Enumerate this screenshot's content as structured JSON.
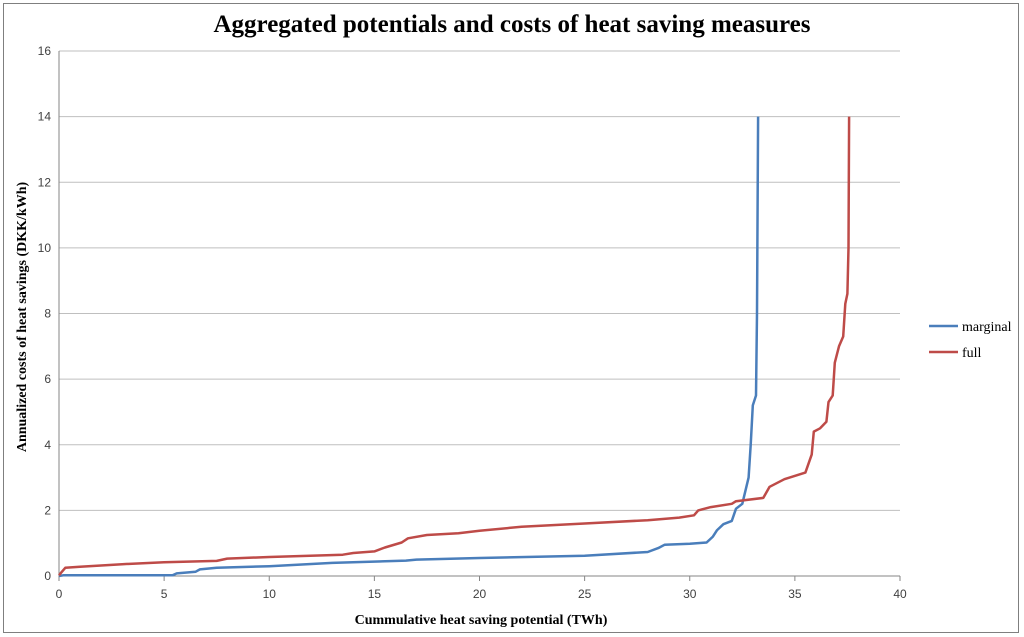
{
  "chart_data": {
    "type": "line",
    "title": "Aggregated potentials and costs of heat saving measures",
    "xlabel": "Cummulative heat saving potential (TWh)",
    "ylabel": "Annualized costs of heat savings (DKK/kWh)",
    "xlim": [
      0,
      40
    ],
    "ylim": [
      0,
      16
    ],
    "xticks": [
      0,
      5,
      10,
      15,
      20,
      25,
      30,
      35,
      40
    ],
    "yticks": [
      0,
      2,
      4,
      6,
      8,
      10,
      12,
      14,
      16
    ],
    "grid": "horizontal",
    "legend_position": "right",
    "series": [
      {
        "name": "marginal",
        "color": "#4a7ebb",
        "points": [
          [
            0,
            0
          ],
          [
            0.2,
            0.02
          ],
          [
            5.4,
            0.02
          ],
          [
            5.6,
            0.08
          ],
          [
            6.5,
            0.13
          ],
          [
            6.7,
            0.2
          ],
          [
            7.5,
            0.25
          ],
          [
            10,
            0.3
          ],
          [
            13,
            0.4
          ],
          [
            16.5,
            0.47
          ],
          [
            17,
            0.5
          ],
          [
            20,
            0.55
          ],
          [
            25,
            0.62
          ],
          [
            28,
            0.73
          ],
          [
            28.5,
            0.85
          ],
          [
            28.8,
            0.95
          ],
          [
            30,
            0.98
          ],
          [
            30.8,
            1.02
          ],
          [
            31.1,
            1.2
          ],
          [
            31.3,
            1.4
          ],
          [
            31.6,
            1.58
          ],
          [
            32,
            1.68
          ],
          [
            32.2,
            2.05
          ],
          [
            32.5,
            2.2
          ],
          [
            32.8,
            3.0
          ],
          [
            32.9,
            4.0
          ],
          [
            33,
            5.2
          ],
          [
            33.15,
            5.5
          ],
          [
            33.2,
            8.0
          ],
          [
            33.25,
            14.0
          ]
        ]
      },
      {
        "name": "full",
        "color": "#be4b48",
        "points": [
          [
            0,
            0.02
          ],
          [
            0.1,
            0.1
          ],
          [
            0.3,
            0.25
          ],
          [
            1,
            0.28
          ],
          [
            3,
            0.36
          ],
          [
            5,
            0.42
          ],
          [
            7.5,
            0.46
          ],
          [
            8,
            0.53
          ],
          [
            10,
            0.58
          ],
          [
            13.5,
            0.65
          ],
          [
            14,
            0.7
          ],
          [
            15,
            0.75
          ],
          [
            15.5,
            0.87
          ],
          [
            16.3,
            1.02
          ],
          [
            16.6,
            1.15
          ],
          [
            17.5,
            1.25
          ],
          [
            19,
            1.3
          ],
          [
            20,
            1.38
          ],
          [
            22,
            1.5
          ],
          [
            25,
            1.6
          ],
          [
            28,
            1.7
          ],
          [
            29.5,
            1.78
          ],
          [
            30.2,
            1.85
          ],
          [
            30.4,
            2.0
          ],
          [
            31,
            2.1
          ],
          [
            32,
            2.2
          ],
          [
            32.2,
            2.28
          ],
          [
            33.5,
            2.38
          ],
          [
            33.8,
            2.72
          ],
          [
            34.5,
            2.95
          ],
          [
            35.5,
            3.15
          ],
          [
            35.8,
            3.7
          ],
          [
            35.9,
            4.4
          ],
          [
            36.2,
            4.5
          ],
          [
            36.5,
            4.7
          ],
          [
            36.6,
            5.3
          ],
          [
            36.8,
            5.5
          ],
          [
            36.9,
            6.5
          ],
          [
            37.1,
            7.0
          ],
          [
            37.3,
            7.3
          ],
          [
            37.4,
            8.3
          ],
          [
            37.5,
            8.6
          ],
          [
            37.55,
            10.0
          ],
          [
            37.58,
            14.0
          ]
        ]
      }
    ]
  }
}
